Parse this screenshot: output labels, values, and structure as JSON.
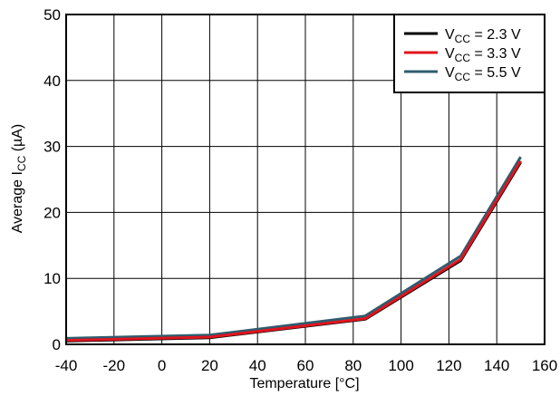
{
  "chart_data": {
    "type": "line",
    "title": "",
    "xlabel": "Temperature [°C]",
    "ylabel": {
      "pre": "Average I",
      "sub": "CC",
      "post": " (µA)"
    },
    "xlim": [
      -40,
      160
    ],
    "ylim": [
      0,
      50
    ],
    "xticks": [
      "-40",
      "-20",
      "0",
      "20",
      "40",
      "60",
      "80",
      "100",
      "120",
      "140",
      "160"
    ],
    "yticks": [
      "0",
      "10",
      "20",
      "30",
      "40",
      "50"
    ],
    "grid": true,
    "legend_position": "top-right",
    "series": [
      {
        "name": {
          "pre": "V",
          "sub": "CC",
          "post": " = 2.3 V"
        },
        "color": "#000000",
        "x": [
          -40,
          20,
          85,
          125,
          150
        ],
        "y": [
          0.5,
          1.0,
          3.8,
          12.7,
          27.6
        ]
      },
      {
        "name": {
          "pre": "V",
          "sub": "CC",
          "post": " = 3.3 V"
        },
        "color": "#e0141e",
        "x": [
          -40,
          20,
          85,
          125,
          150
        ],
        "y": [
          0.6,
          1.1,
          3.9,
          12.9,
          27.8
        ]
      },
      {
        "name": {
          "pre": "V",
          "sub": "CC",
          "post": " = 5.5 V"
        },
        "color": "#2e5c6e",
        "x": [
          -40,
          20,
          85,
          125,
          150
        ],
        "y": [
          0.9,
          1.4,
          4.3,
          13.4,
          28.4
        ]
      }
    ]
  }
}
